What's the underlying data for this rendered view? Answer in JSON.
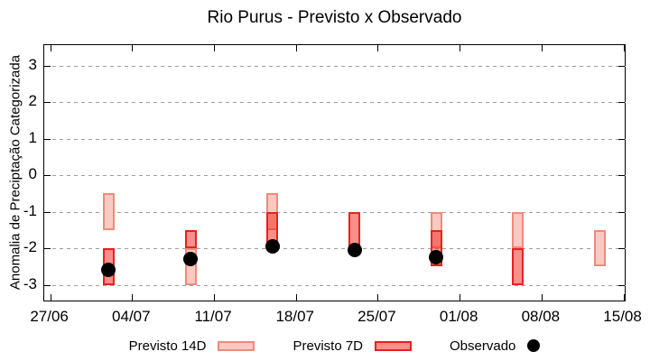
{
  "title": "Rio Purus - Previsto x Observado",
  "legend": {
    "previsto14d_label": "Previsto 14D",
    "previsto7d_label": "Previsto 7D",
    "observado_label": "Observado"
  },
  "colors": {
    "p14_fill": "#f9c9c2",
    "p14_border": "#f0897b",
    "p7_fill_rgba": "rgba(242,40,30,0.52)",
    "p7_border": "#e9211d",
    "observado": "#000000",
    "grid": "#9e9e9e",
    "axis": "#000000"
  },
  "chart_data": {
    "type": "bar",
    "subtype": "categorized-range-bars-with-scatter",
    "title": "Rio Purus - Previsto x Observado",
    "xlabel": "",
    "ylabel": "Anomalia de Preciptação Categorizada",
    "grid": "horizontal-dashed",
    "legend_position": "bottom",
    "ylim": [
      -3.43,
      3.56
    ],
    "xlim_days": [
      -0.51,
      49.11
    ],
    "y_ticks": [
      3,
      2,
      1,
      0,
      -1,
      -2,
      -3
    ],
    "x_ticks": [
      {
        "label": "27/06",
        "day": 0
      },
      {
        "label": "04/07",
        "day": 7
      },
      {
        "label": "11/07",
        "day": 14
      },
      {
        "label": "18/07",
        "day": 21
      },
      {
        "label": "25/07",
        "day": 28
      },
      {
        "label": "01/08",
        "day": 35
      },
      {
        "label": "08/08",
        "day": 42
      },
      {
        "label": "15/08",
        "day": 49
      }
    ],
    "series": [
      {
        "name": "Previsto 14D",
        "type": "range-bar",
        "points": [
          {
            "date": "02/07",
            "day": 5,
            "from": -0.5,
            "to": -1.5
          },
          {
            "date": "09/07",
            "day": 12,
            "from": -2.0,
            "to": -3.0
          },
          {
            "date": "16/07",
            "day": 19,
            "from": -0.5,
            "to": -1.5
          },
          {
            "date": "30/07",
            "day": 33,
            "from": -1.0,
            "to": -2.0
          },
          {
            "date": "06/08",
            "day": 40,
            "from": -1.0,
            "to": -2.0
          },
          {
            "date": "13/08",
            "day": 47,
            "from": -1.5,
            "to": -2.5
          }
        ]
      },
      {
        "name": "Previsto 7D",
        "type": "range-bar",
        "points": [
          {
            "date": "02/07",
            "day": 5,
            "from": -2.0,
            "to": -3.0
          },
          {
            "date": "09/07",
            "day": 12,
            "from": -1.5,
            "to": -2.0
          },
          {
            "date": "16/07",
            "day": 19,
            "from": -1.0,
            "to": -2.0
          },
          {
            "date": "23/07",
            "day": 26,
            "from": -1.0,
            "to": -2.0
          },
          {
            "date": "30/07",
            "day": 33,
            "from": -1.5,
            "to": -2.5
          },
          {
            "date": "06/08",
            "day": 40,
            "from": -2.0,
            "to": -3.0
          }
        ]
      },
      {
        "name": "Observado",
        "type": "scatter",
        "points": [
          {
            "date": "02/07",
            "day": 5,
            "value": -2.6
          },
          {
            "date": "09/07",
            "day": 12,
            "value": -2.3
          },
          {
            "date": "16/07",
            "day": 19,
            "value": -1.95
          },
          {
            "date": "23/07",
            "day": 26,
            "value": -2.05
          },
          {
            "date": "30/07",
            "day": 33,
            "value": -2.25
          }
        ]
      }
    ]
  }
}
